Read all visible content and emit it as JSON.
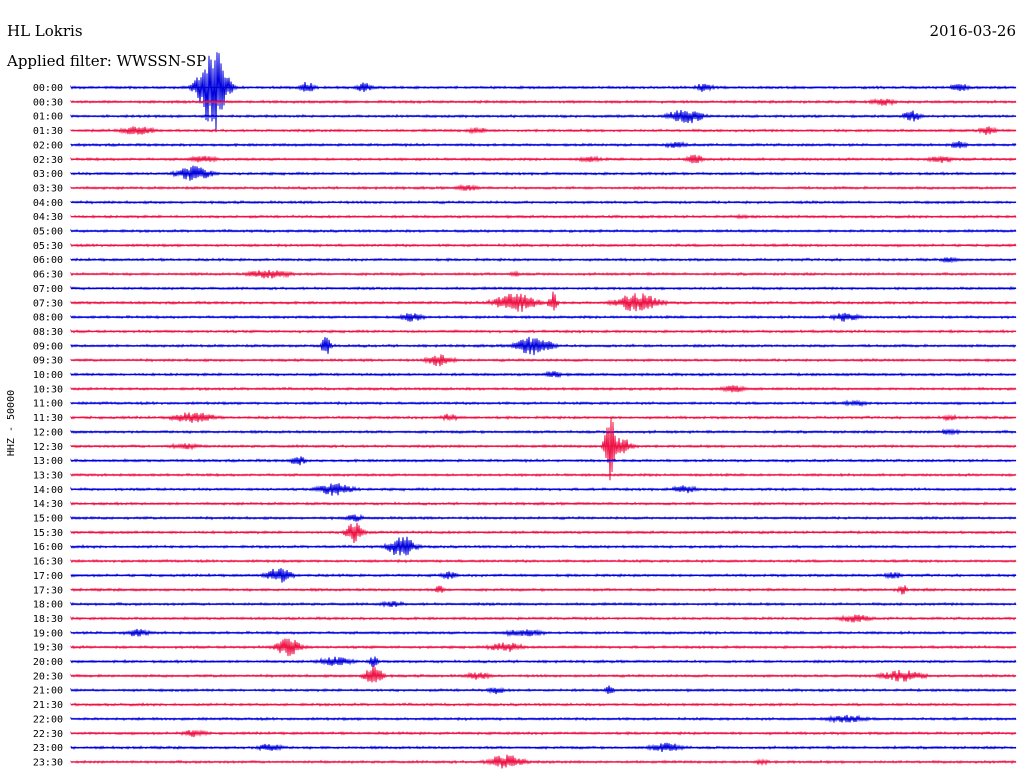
{
  "header": {
    "station": "HL Lokris",
    "date": "2016-03-26",
    "filter": "Applied filter: WWSSN-SP"
  },
  "chart_data": {
    "type": "line",
    "ylabel": "HHZ - 50000",
    "colors": [
      "#0000dd",
      "#ee1144"
    ],
    "rows": [
      "00:00",
      "00:30",
      "01:00",
      "01:30",
      "02:00",
      "02:30",
      "03:00",
      "03:30",
      "04:00",
      "04:30",
      "05:00",
      "05:30",
      "06:00",
      "06:30",
      "07:00",
      "07:30",
      "08:00",
      "08:30",
      "09:00",
      "09:30",
      "10:00",
      "10:30",
      "11:00",
      "11:30",
      "12:00",
      "12:30",
      "13:00",
      "13:30",
      "14:00",
      "14:30",
      "15:00",
      "15:30",
      "16:00",
      "16:30",
      "17:00",
      "17:30",
      "18:00",
      "18:30",
      "19:00",
      "19:30",
      "20:00",
      "20:30",
      "21:00",
      "21:30",
      "22:00",
      "22:30",
      "23:00",
      "23:30"
    ],
    "events": [
      [
        0,
        0.15,
        3,
        45
      ],
      [
        0,
        0.25,
        2,
        6
      ],
      [
        0,
        0.31,
        2,
        5
      ],
      [
        0,
        0.67,
        2,
        5
      ],
      [
        0,
        0.94,
        2,
        5
      ],
      [
        1,
        0.86,
        3,
        4
      ],
      [
        2,
        0.65,
        4,
        8
      ],
      [
        2,
        0.89,
        2,
        6
      ],
      [
        3,
        0.07,
        4,
        5
      ],
      [
        3,
        0.43,
        3,
        3
      ],
      [
        3,
        0.97,
        2,
        5
      ],
      [
        4,
        0.64,
        3,
        3
      ],
      [
        4,
        0.94,
        2,
        4
      ],
      [
        5,
        0.14,
        3,
        4
      ],
      [
        5,
        0.55,
        3,
        3
      ],
      [
        5,
        0.66,
        2,
        5
      ],
      [
        5,
        0.92,
        3,
        4
      ],
      [
        6,
        0.13,
        4,
        8
      ],
      [
        7,
        0.42,
        3,
        3
      ],
      [
        9,
        0.71,
        2,
        2
      ],
      [
        12,
        0.93,
        2,
        3
      ],
      [
        13,
        0.21,
        5,
        5
      ],
      [
        13,
        0.47,
        1,
        4
      ],
      [
        15,
        0.47,
        5,
        10
      ],
      [
        15,
        0.6,
        5,
        10
      ],
      [
        15,
        0.51,
        1,
        12
      ],
      [
        16,
        0.36,
        3,
        5
      ],
      [
        16,
        0.82,
        3,
        5
      ],
      [
        18,
        0.27,
        1,
        12
      ],
      [
        18,
        0.49,
        4,
        10
      ],
      [
        19,
        0.39,
        3,
        7
      ],
      [
        20,
        0.51,
        2,
        4
      ],
      [
        21,
        0.7,
        3,
        4
      ],
      [
        22,
        0.83,
        3,
        3
      ],
      [
        23,
        0.13,
        5,
        6
      ],
      [
        23,
        0.4,
        2,
        4
      ],
      [
        23,
        0.93,
        2,
        3
      ],
      [
        24,
        0.93,
        2,
        4
      ],
      [
        25,
        0.12,
        4,
        3
      ],
      [
        25,
        0.57,
        1,
        48
      ],
      [
        25,
        0.58,
        3,
        10
      ],
      [
        26,
        0.24,
        2,
        5
      ],
      [
        28,
        0.28,
        4,
        7
      ],
      [
        28,
        0.65,
        3,
        4
      ],
      [
        30,
        0.3,
        2,
        4
      ],
      [
        31,
        0.3,
        2,
        12
      ],
      [
        32,
        0.35,
        3,
        12
      ],
      [
        34,
        0.22,
        3,
        8
      ],
      [
        34,
        0.4,
        2,
        4
      ],
      [
        34,
        0.87,
        2,
        4
      ],
      [
        35,
        0.39,
        1,
        5
      ],
      [
        35,
        0.88,
        1,
        6
      ],
      [
        36,
        0.34,
        3,
        3
      ],
      [
        37,
        0.83,
        4,
        4
      ],
      [
        38,
        0.07,
        3,
        4
      ],
      [
        38,
        0.48,
        5,
        4
      ],
      [
        39,
        0.23,
        3,
        10
      ],
      [
        39,
        0.46,
        4,
        5
      ],
      [
        40,
        0.28,
        4,
        5
      ],
      [
        40,
        0.32,
        1,
        6
      ],
      [
        41,
        0.32,
        2,
        12
      ],
      [
        41,
        0.88,
        5,
        6
      ],
      [
        41,
        0.43,
        3,
        4
      ],
      [
        42,
        0.45,
        2,
        4
      ],
      [
        42,
        0.57,
        1,
        5
      ],
      [
        44,
        0.82,
        5,
        4
      ],
      [
        45,
        0.13,
        3,
        4
      ],
      [
        46,
        0.21,
        3,
        4
      ],
      [
        46,
        0.63,
        4,
        5
      ],
      [
        47,
        0.46,
        4,
        8
      ],
      [
        47,
        0.73,
        2,
        3
      ]
    ]
  }
}
